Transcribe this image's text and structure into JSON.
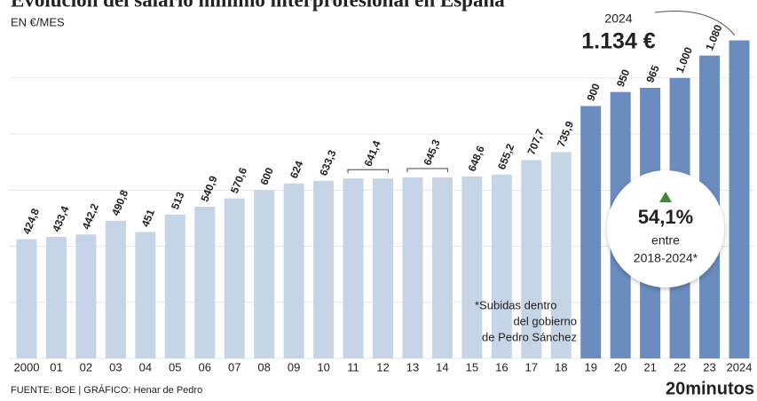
{
  "chart_data": {
    "type": "bar",
    "title": "Evolución del salario mínimo interprofesional en España",
    "subtitle": "EN €/MES",
    "categories": [
      "2000",
      "01",
      "02",
      "03",
      "04",
      "05",
      "06",
      "07",
      "08",
      "09",
      "10",
      "11",
      "12",
      "13",
      "14",
      "15",
      "16",
      "17",
      "18",
      "19",
      "20",
      "21",
      "22",
      "23",
      "2024"
    ],
    "values": [
      424.8,
      433.4,
      442.2,
      490.8,
      451,
      513,
      540.9,
      570.6,
      600,
      624,
      633.3,
      641.4,
      641.4,
      645.3,
      645.3,
      648.6,
      655.2,
      707.7,
      735.9,
      900,
      950,
      965,
      1000,
      1080,
      1134
    ],
    "value_labels": [
      "424,8",
      "433,4",
      "442,2",
      "490,8",
      "451",
      "513",
      "540,9",
      "570,6",
      "600",
      "624",
      "633,3",
      "641,4",
      null,
      "645,3",
      null,
      "648,6",
      "655,2",
      "707,7",
      "735,9",
      "900",
      "950",
      "965",
      "1.000",
      "1.080",
      "1.134 €"
    ],
    "colors": [
      "#c6d4e7",
      "#c6d4e7",
      "#c6d4e7",
      "#c6d4e7",
      "#c6d4e7",
      "#c6d4e7",
      "#c6d4e7",
      "#c6d4e7",
      "#c6d4e7",
      "#c6d4e7",
      "#c6d4e7",
      "#c6d4e7",
      "#c6d4e7",
      "#c6d4e7",
      "#c6d4e7",
      "#c6d4e7",
      "#c6d4e7",
      "#c6d4e7",
      "#c6d4e7",
      "#6b8cbf",
      "#6b8cbf",
      "#6b8cbf",
      "#6b8cbf",
      "#6b8cbf",
      "#6b8cbf"
    ],
    "ylim": [
      0,
      1180
    ],
    "yticks": [
      0,
      200,
      400,
      600,
      800,
      1000
    ],
    "grid": true,
    "annotations": {
      "year": "2024",
      "note": [
        "*Subidas dentro",
        "del gobierno",
        "de Pedro Sánchez"
      ],
      "circle": {
        "value": "54,1%",
        "line1": "entre",
        "line2": "2018-2024*"
      }
    },
    "source": "FUENTE: BOE  |  GRÁFICO: Henar de Pedro",
    "logo": "20minutos"
  }
}
